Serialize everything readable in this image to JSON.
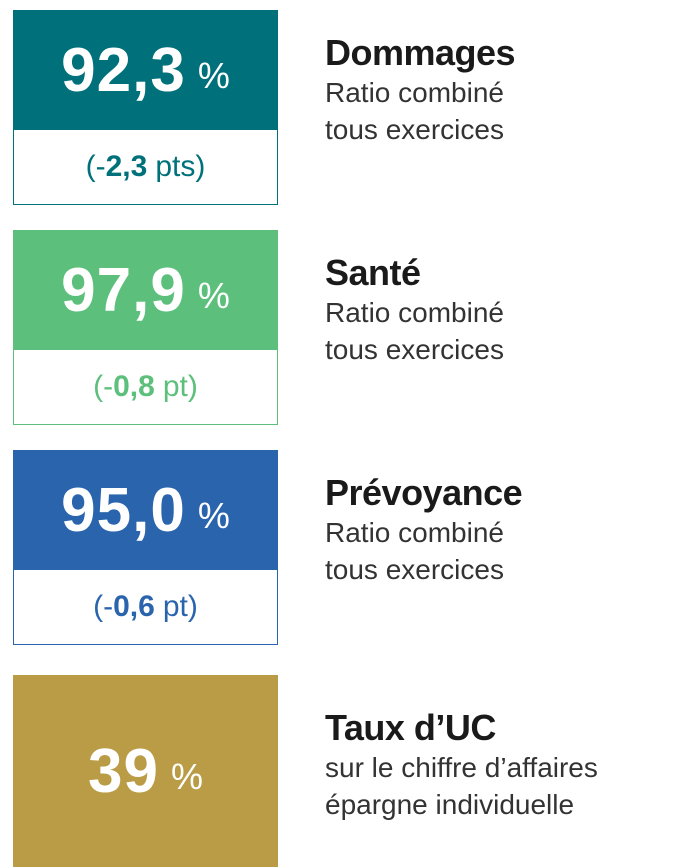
{
  "items": [
    {
      "value": "92,3",
      "unit": "%",
      "change": {
        "prefix": "(-",
        "value": "2,3",
        "unit": "pts)"
      },
      "title": "Dommages",
      "subtitle": [
        "Ratio combiné",
        "tous exercices"
      ],
      "color": "#00717a"
    },
    {
      "value": "97,9",
      "unit": "%",
      "change": {
        "prefix": "(-",
        "value": "0,8",
        "unit": "pt)"
      },
      "title": "Santé",
      "subtitle": [
        "Ratio combiné",
        "tous exercices"
      ],
      "color": "#5cbf7b"
    },
    {
      "value": "95,0",
      "unit": "%",
      "change": {
        "prefix": "(-",
        "value": "0,6",
        "unit": "pt)"
      },
      "title": "Prévoyance",
      "subtitle": [
        "Ratio combiné",
        "tous exercices"
      ],
      "color": "#2a64ad"
    },
    {
      "value": "39",
      "unit": "%",
      "title": "Taux d’UC",
      "subtitle": [
        "sur le chiffre d’affaires",
        "épargne individuelle"
      ],
      "color": "#b99c45"
    }
  ]
}
